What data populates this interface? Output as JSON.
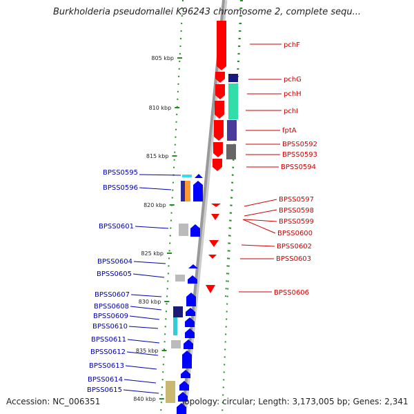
{
  "title": "Burkholderia pseudomallei K96243 chromosome 2, complete sequ...",
  "footer": {
    "accession_label": "Accession:",
    "accession": "NC_006351",
    "summary": "Topology: circular; Length: 3,173,005 bp; Genes: 2,341"
  },
  "colors": {
    "backbone": "#999999",
    "tick": "#228b22",
    "forward_feature": "#ff0000",
    "reverse_feature": "#0000ff",
    "forward_label": "#cc0000",
    "reverse_label": "#0000aa"
  },
  "ticks": [
    {
      "label": "805 kbp",
      "position_kbp": 805
    },
    {
      "label": "810 kbp",
      "position_kbp": 810
    },
    {
      "label": "815 kbp",
      "position_kbp": 815
    },
    {
      "label": "820 kbp",
      "position_kbp": 820
    },
    {
      "label": "825 kbp",
      "position_kbp": 825
    },
    {
      "label": "830 kbp",
      "position_kbp": 830
    },
    {
      "label": "835 kbp",
      "position_kbp": 835
    },
    {
      "label": "840 kbp",
      "position_kbp": 840
    }
  ],
  "forward_genes": [
    {
      "name": "pchF"
    },
    {
      "name": "pchG"
    },
    {
      "name": "pchH"
    },
    {
      "name": "pchI"
    },
    {
      "name": "fptA"
    },
    {
      "name": "BPSS0592"
    },
    {
      "name": "BPSS0593"
    },
    {
      "name": "BPSS0594"
    },
    {
      "name": "BPSS0597"
    },
    {
      "name": "BPSS0598"
    },
    {
      "name": "BPSS0599"
    },
    {
      "name": "BPSS0600"
    },
    {
      "name": "BPSS0602"
    },
    {
      "name": "BPSS0603"
    },
    {
      "name": "BPSS0606"
    }
  ],
  "reverse_genes": [
    {
      "name": "BPSS0595"
    },
    {
      "name": "BPSS0596"
    },
    {
      "name": "BPSS0601"
    },
    {
      "name": "BPSS0604"
    },
    {
      "name": "BPSS0605"
    },
    {
      "name": "BPSS0607"
    },
    {
      "name": "BPSS0608"
    },
    {
      "name": "BPSS0609"
    },
    {
      "name": "BPSS0610"
    },
    {
      "name": "BPSS0611"
    },
    {
      "name": "BPSS0612"
    },
    {
      "name": "BPSS0613"
    },
    {
      "name": "BPSS0614"
    },
    {
      "name": "BPSS0615"
    }
  ]
}
